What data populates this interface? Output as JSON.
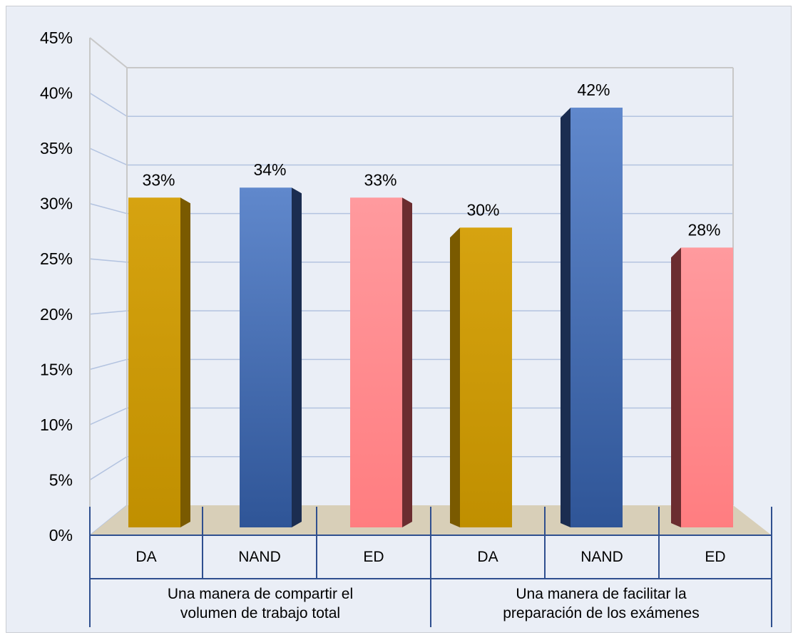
{
  "chart_data": {
    "type": "bar",
    "style": "3d-clustered-column",
    "ylim": [
      0,
      45
    ],
    "ytick_values": [
      0,
      5,
      10,
      15,
      20,
      25,
      30,
      35,
      40,
      45
    ],
    "ytick_labels": [
      "0%",
      "5%",
      "10%",
      "15%",
      "20%",
      "25%",
      "30%",
      "35%",
      "40%",
      "45%"
    ],
    "grid": true,
    "legend": "none",
    "groups": [
      {
        "label_lines": [
          "Una manera de compartir el",
          "volumen de trabajo total"
        ],
        "bars": [
          {
            "category": "DA",
            "value": 33,
            "data_label": "33%",
            "color": "#c29100"
          },
          {
            "category": "NAND",
            "value": 34,
            "data_label": "34%",
            "color": "#3a5ea0"
          },
          {
            "category": "ED",
            "value": 33,
            "data_label": "33%",
            "color": "#ff8a8e"
          }
        ]
      },
      {
        "label_lines": [
          "Una manera de facilitar la",
          "preparación de los exámenes"
        ],
        "bars": [
          {
            "category": "DA",
            "value": 30,
            "data_label": "30%",
            "color": "#c29100"
          },
          {
            "category": "NAND",
            "value": 42,
            "data_label": "42%",
            "color": "#4a70b8"
          },
          {
            "category": "ED",
            "value": 28,
            "data_label": "28%",
            "color": "#ff8a8e"
          }
        ]
      }
    ],
    "colors": {
      "background": "#eaeef6",
      "floor": "#d8cfb8",
      "grid": "#b3c3e0",
      "axis": "#2f4f8f"
    }
  }
}
